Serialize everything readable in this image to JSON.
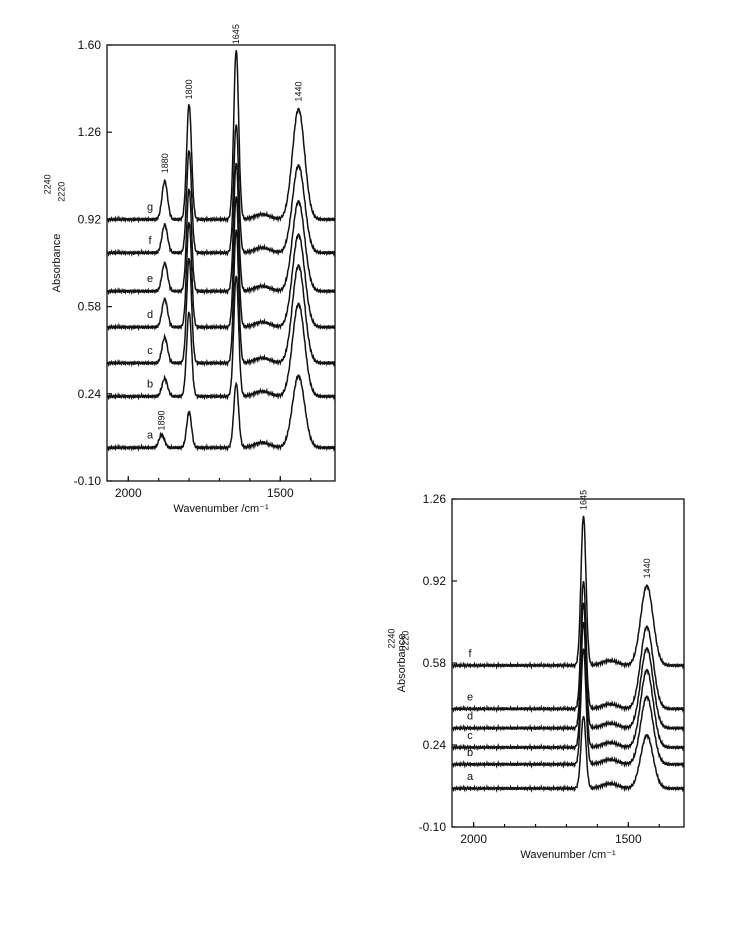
{
  "chart_data": [
    {
      "type": "line",
      "xlabel": "Wavenumber /cm⁻¹",
      "ylabel": "Absorbance",
      "x_ticks": [
        "2000",
        "1500"
      ],
      "y_ticks": [
        "1.60",
        "1.26",
        "0.92",
        "0.58",
        "0.24",
        "-0.10"
      ],
      "xlim": [
        2070,
        1320
      ],
      "ylim": [
        -0.1,
        1.6
      ],
      "grid": false,
      "peak_labels": [
        "2240",
        "2220",
        "1880",
        "1890",
        "1800",
        "1645",
        "1440"
      ],
      "series": [
        {
          "name": "a",
          "baseline": 0.03,
          "peaks": {
            "2240": 0.04,
            "2220": 0.02,
            "1890": 0.05,
            "1800": 0.14,
            "1645": 0.25,
            "1440": 0.28
          }
        },
        {
          "name": "b",
          "baseline": 0.23,
          "peaks": {
            "2240": 0.05,
            "2220": 0.03,
            "1880": 0.07,
            "1800": 0.33,
            "1645": 0.47,
            "1440": 0.36
          }
        },
        {
          "name": "c",
          "baseline": 0.36,
          "peaks": {
            "2240": 0.06,
            "2220": 0.03,
            "1880": 0.1,
            "1800": 0.41,
            "1645": 0.52,
            "1440": 0.38
          }
        },
        {
          "name": "d",
          "baseline": 0.5,
          "peaks": {
            "2240": 0.06,
            "2220": 0.03,
            "1880": 0.11,
            "1800": 0.41,
            "1645": 0.51,
            "1440": 0.36
          }
        },
        {
          "name": "e",
          "baseline": 0.64,
          "peaks": {
            "2240": 0.06,
            "2220": 0.03,
            "1880": 0.11,
            "1800": 0.4,
            "1645": 0.5,
            "1440": 0.35
          }
        },
        {
          "name": "f",
          "baseline": 0.79,
          "peaks": {
            "2240": 0.06,
            "2220": 0.03,
            "1880": 0.11,
            "1800": 0.4,
            "1645": 0.5,
            "1440": 0.34
          }
        },
        {
          "name": "g",
          "baseline": 0.92,
          "peaks": {
            "2240": 0.07,
            "2220": 0.04,
            "1880": 0.15,
            "1800": 0.45,
            "1645": 0.66,
            "1440": 0.43
          }
        }
      ]
    },
    {
      "type": "line",
      "xlabel": "Wavenumber /cm⁻¹",
      "ylabel": "Absorbance",
      "x_ticks": [
        "2000",
        "1500"
      ],
      "y_ticks": [
        "1.26",
        "0.92",
        "0.58",
        "0.24",
        "-0.10"
      ],
      "xlim": [
        2070,
        1320
      ],
      "ylim": [
        -0.1,
        1.26
      ],
      "grid": false,
      "peak_labels": [
        "2240",
        "2220",
        "1645",
        "1440"
      ],
      "series": [
        {
          "name": "a",
          "baseline": 0.06,
          "peaks": {
            "2240": 0.03,
            "2220": 0.02,
            "1645": 0.3,
            "1440": 0.22
          }
        },
        {
          "name": "b",
          "baseline": 0.16,
          "peaks": {
            "2240": 0.04,
            "2220": 0.02,
            "1645": 0.48,
            "1440": 0.28
          }
        },
        {
          "name": "c",
          "baseline": 0.23,
          "peaks": {
            "2240": 0.05,
            "2220": 0.03,
            "1645": 0.52,
            "1440": 0.32
          }
        },
        {
          "name": "d",
          "baseline": 0.31,
          "peaks": {
            "2240": 0.05,
            "2220": 0.03,
            "1645": 0.52,
            "1440": 0.33
          }
        },
        {
          "name": "e",
          "baseline": 0.39,
          "peaks": {
            "2240": 0.05,
            "2220": 0.03,
            "1645": 0.53,
            "1440": 0.34
          }
        },
        {
          "name": "f",
          "baseline": 0.57,
          "peaks": {
            "2240": 0.04,
            "2220": 0.03,
            "1645": 0.62,
            "1440": 0.33
          }
        }
      ]
    }
  ]
}
